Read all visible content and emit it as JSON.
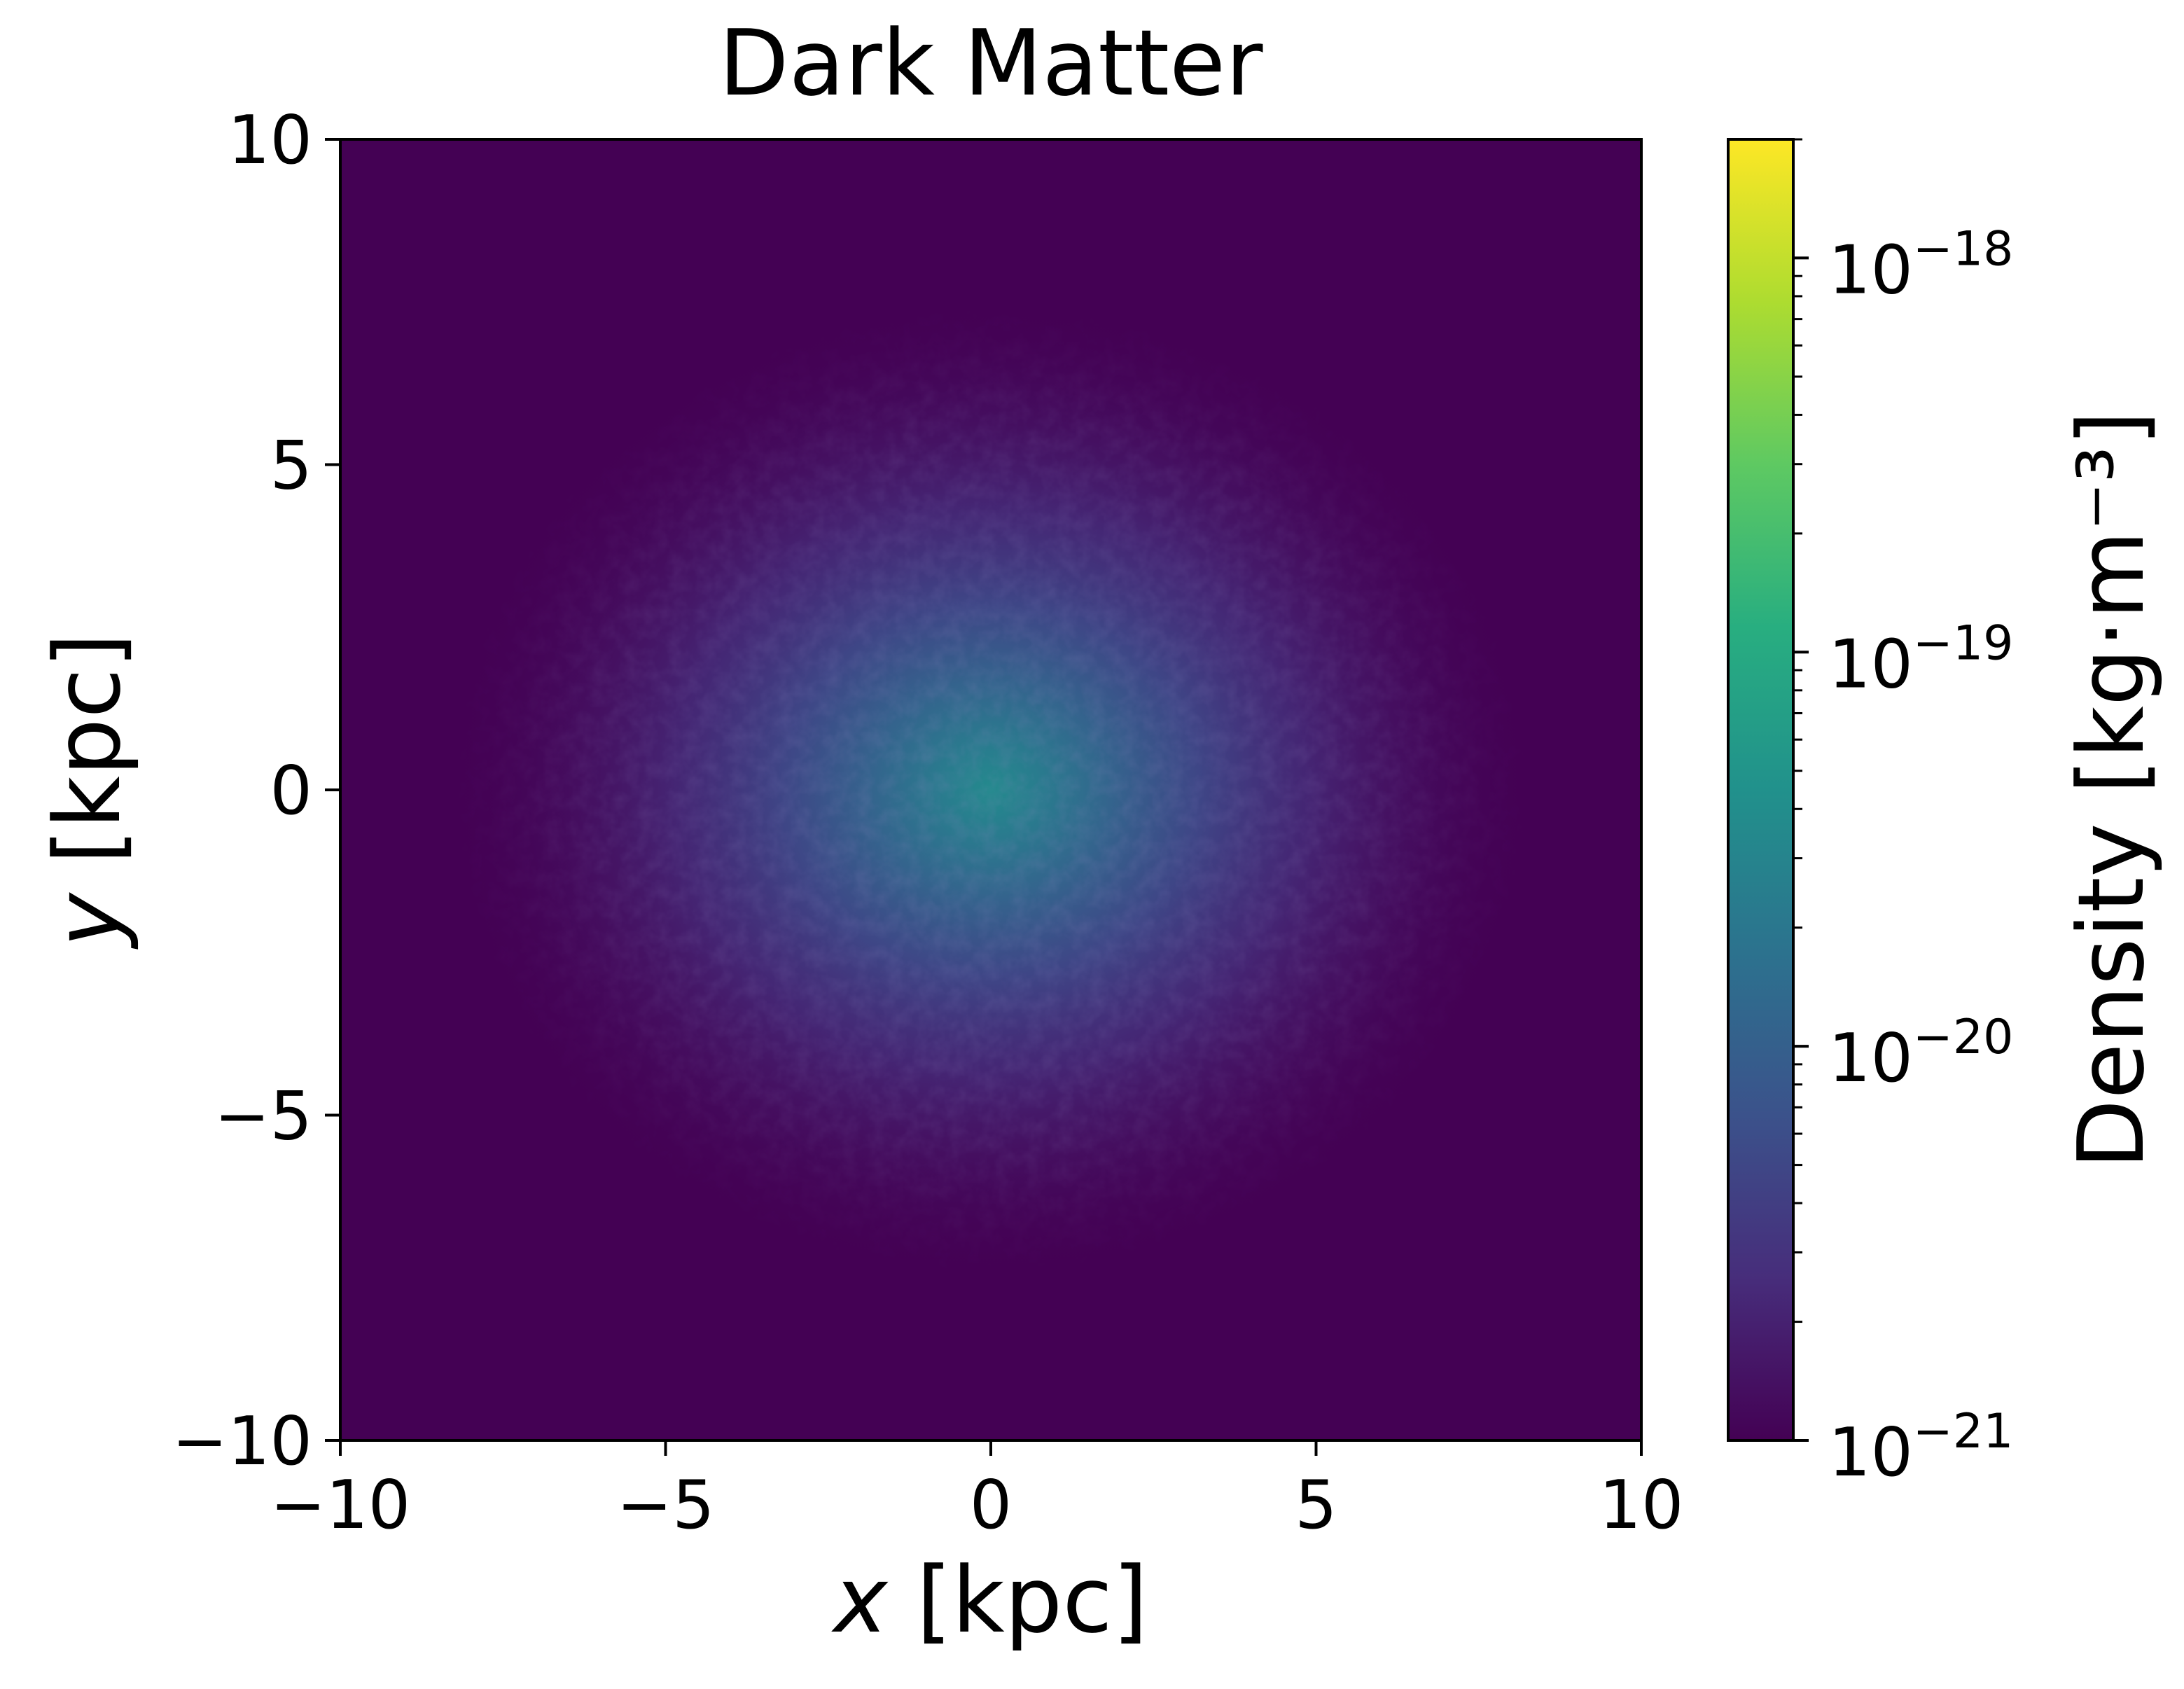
{
  "chart_data": {
    "type": "heatmap",
    "title": "Dark Matter",
    "xlabel": {
      "var": "x",
      "unit": " [kpc]"
    },
    "ylabel": {
      "var": "y",
      "unit": " [kpc]"
    },
    "xlim": [
      -10,
      10
    ],
    "ylim": [
      -10,
      10
    ],
    "xticks": [
      -10,
      -5,
      0,
      5,
      10
    ],
    "yticks": [
      -10,
      -5,
      0,
      5,
      10
    ],
    "xtick_labels": [
      "−10",
      "−5",
      "0",
      "5",
      "10"
    ],
    "ytick_labels": [
      "−10",
      "−5",
      "0",
      "5",
      "10"
    ],
    "colormap": "viridis",
    "colorbar": {
      "label": "Density [kg·m⁻³]",
      "scale": "log",
      "range": [
        1e-21,
        2e-18
      ],
      "major_ticks": [
        {
          "value": 1e-21,
          "base": "10",
          "exp": "−21"
        },
        {
          "value": 1e-20,
          "base": "10",
          "exp": "−20"
        },
        {
          "value": 1e-19,
          "base": "10",
          "exp": "−19"
        },
        {
          "value": 1e-18,
          "base": "10",
          "exp": "−18"
        }
      ]
    },
    "density_field": {
      "description_units": "kg·m⁻³",
      "background": 1e-21,
      "peak_center": [
        0,
        0
      ],
      "peak_value": 6e-20,
      "extent_radius_kpc": 7
    },
    "grid": false
  }
}
